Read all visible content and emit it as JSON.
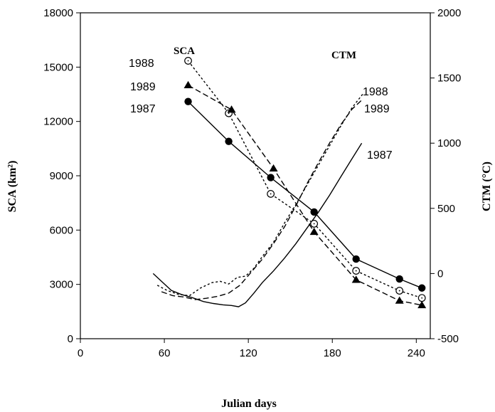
{
  "chart_data": {
    "type": "line",
    "xlabel": "Julian days",
    "ylabel_left": "SCA (km²)",
    "ylabel_right": "CTM (°C)",
    "xlim": [
      0,
      250
    ],
    "ylim_left": [
      0,
      18000
    ],
    "ylim_right": [
      -500,
      2000
    ],
    "x_ticks": [
      0,
      60,
      120,
      180,
      240
    ],
    "y_ticks_left": [
      0,
      3000,
      6000,
      9000,
      12000,
      15000,
      18000
    ],
    "y_ticks_right": [
      -500,
      0,
      500,
      1000,
      1500,
      2000
    ],
    "grid": false,
    "annotations": {
      "sca_group": "SCA",
      "ctm_group": "CTM",
      "sca_1988": "1988",
      "sca_1989": "1989",
      "sca_1987": "1987",
      "ctm_1988": "1988",
      "ctm_1989": "1989",
      "ctm_1987": "1987"
    },
    "sca_series": [
      {
        "name": "1987",
        "axis": "left",
        "style": "solid",
        "marker": "filled-circle",
        "x": [
          77,
          106,
          136,
          167,
          197,
          228,
          244
        ],
        "y": [
          13100,
          10900,
          8900,
          7000,
          4400,
          3300,
          2800
        ]
      },
      {
        "name": "1988",
        "axis": "left",
        "style": "dotted",
        "marker": "open-circle",
        "x": [
          77,
          106,
          136,
          167,
          197,
          228,
          244
        ],
        "y": [
          15350,
          12450,
          8000,
          6350,
          3750,
          2650,
          2250
        ]
      },
      {
        "name": "1989",
        "axis": "left",
        "style": "dashed",
        "marker": "filled-triangle",
        "x": [
          77,
          108,
          138,
          167,
          197,
          228,
          244
        ],
        "y": [
          14000,
          12650,
          9400,
          5900,
          3250,
          2100,
          1850
        ]
      }
    ],
    "ctm_series": [
      {
        "name": "1987",
        "axis": "right",
        "style": "solid",
        "x": [
          52,
          58,
          65,
          72,
          80,
          88,
          95,
          102,
          108,
          113,
          118,
          124,
          130,
          138,
          146,
          154,
          162,
          170,
          178,
          186,
          194,
          201
        ],
        "y": [
          0,
          -60,
          -130,
          -160,
          -185,
          -215,
          -230,
          -240,
          -245,
          -255,
          -225,
          -150,
          -70,
          20,
          120,
          230,
          350,
          470,
          600,
          740,
          880,
          1000
        ]
      },
      {
        "name": "1988",
        "axis": "right",
        "style": "dotted",
        "x": [
          55,
          62,
          70,
          78,
          86,
          94,
          100,
          106,
          112,
          118,
          124,
          130,
          138,
          146,
          154,
          162,
          170,
          178,
          186,
          194,
          202
        ],
        "y": [
          -90,
          -130,
          -160,
          -170,
          -110,
          -70,
          -60,
          -80,
          -30,
          -20,
          40,
          130,
          240,
          390,
          530,
          680,
          830,
          980,
          1130,
          1270,
          1380
        ]
      },
      {
        "name": "1989",
        "axis": "right",
        "style": "dashed",
        "x": [
          58,
          66,
          74,
          82,
          90,
          98,
          106,
          114,
          122,
          130,
          138,
          146,
          154,
          162,
          170,
          178,
          186,
          194,
          202
        ],
        "y": [
          -140,
          -170,
          -180,
          -200,
          -190,
          -175,
          -150,
          -90,
          10,
          110,
          230,
          360,
          520,
          690,
          850,
          1000,
          1140,
          1260,
          1340
        ]
      }
    ]
  }
}
